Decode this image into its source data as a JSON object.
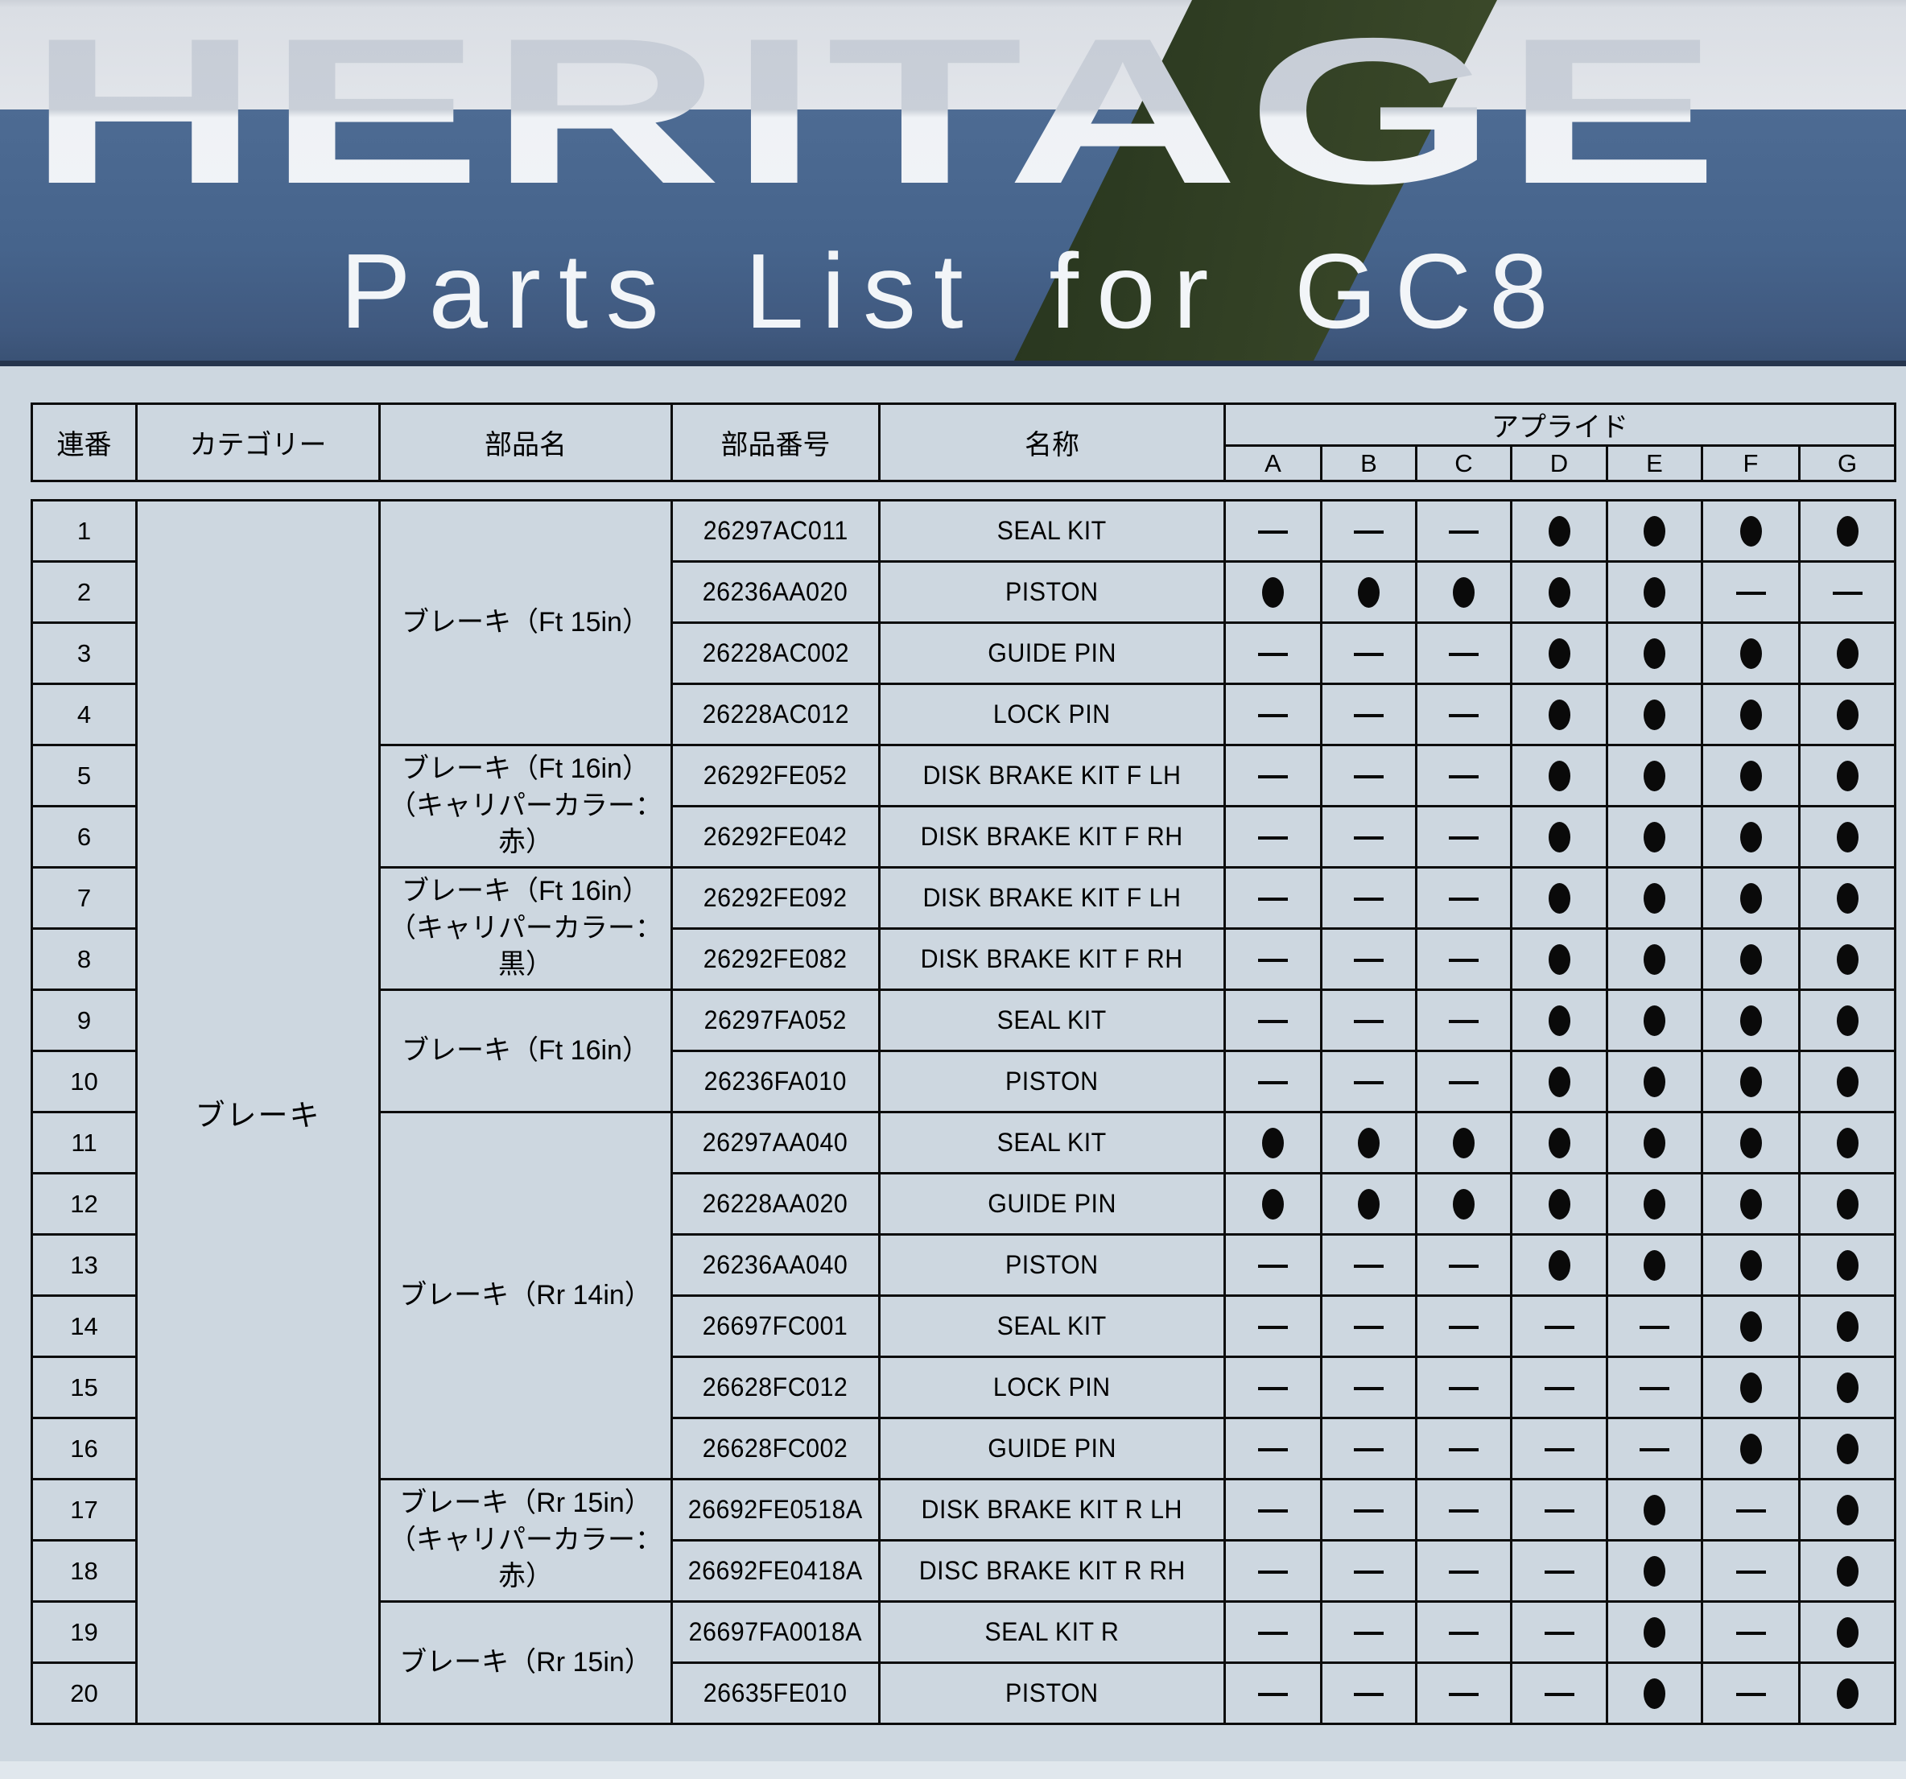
{
  "banner": {
    "brand": "HERITAGE",
    "title": "Parts List for GC8"
  },
  "colors": {
    "banner_blue": "#46648c",
    "banner_light_band": "#dadee4",
    "banner_bottom_line": "#26354d",
    "page_background": "#cdd7e0",
    "table_border": "#0c0c0c",
    "text": "#000000"
  },
  "table": {
    "headers": {
      "seq": "連番",
      "category": "カテゴリー",
      "part_name": "部品名",
      "part_number": "部品番号",
      "name": "名称",
      "applied": "アプライド",
      "applied_cols": [
        "A",
        "B",
        "C",
        "D",
        "E",
        "F",
        "G"
      ]
    },
    "category": "ブレーキ",
    "symbols": {
      "applicable": "●",
      "not_applicable": "—"
    },
    "groups": [
      {
        "part_name_lines": [
          "ブレーキ（Ft 15in）"
        ],
        "rows": [
          {
            "seq": "1",
            "part_number": "26297AC011",
            "name": "SEAL KIT",
            "applied": [
              "—",
              "—",
              "—",
              "●",
              "●",
              "●",
              "●"
            ]
          },
          {
            "seq": "2",
            "part_number": "26236AA020",
            "name": "PISTON",
            "applied": [
              "●",
              "●",
              "●",
              "●",
              "●",
              "—",
              "—"
            ]
          },
          {
            "seq": "3",
            "part_number": "26228AC002",
            "name": "GUIDE PIN",
            "applied": [
              "—",
              "—",
              "—",
              "●",
              "●",
              "●",
              "●"
            ]
          },
          {
            "seq": "4",
            "part_number": "26228AC012",
            "name": "LOCK PIN",
            "applied": [
              "—",
              "—",
              "—",
              "●",
              "●",
              "●",
              "●"
            ]
          }
        ]
      },
      {
        "part_name_lines": [
          "ブレーキ（Ft 16in）",
          "（キャリパーカラー：赤）"
        ],
        "rows": [
          {
            "seq": "5",
            "part_number": "26292FE052",
            "name": "DISK BRAKE KIT F LH",
            "applied": [
              "—",
              "—",
              "—",
              "●",
              "●",
              "●",
              "●"
            ]
          },
          {
            "seq": "6",
            "part_number": "26292FE042",
            "name": "DISK BRAKE KIT F RH",
            "applied": [
              "—",
              "—",
              "—",
              "●",
              "●",
              "●",
              "●"
            ]
          }
        ]
      },
      {
        "part_name_lines": [
          "ブレーキ（Ft 16in）",
          "（キャリパーカラー：黒）"
        ],
        "rows": [
          {
            "seq": "7",
            "part_number": "26292FE092",
            "name": "DISK BRAKE KIT F LH",
            "applied": [
              "—",
              "—",
              "—",
              "●",
              "●",
              "●",
              "●"
            ]
          },
          {
            "seq": "8",
            "part_number": "26292FE082",
            "name": "DISK BRAKE KIT F RH",
            "applied": [
              "—",
              "—",
              "—",
              "●",
              "●",
              "●",
              "●"
            ]
          }
        ]
      },
      {
        "part_name_lines": [
          "ブレーキ（Ft 16in）"
        ],
        "rows": [
          {
            "seq": "9",
            "part_number": "26297FA052",
            "name": "SEAL KIT",
            "applied": [
              "—",
              "—",
              "—",
              "●",
              "●",
              "●",
              "●"
            ]
          },
          {
            "seq": "10",
            "part_number": "26236FA010",
            "name": "PISTON",
            "applied": [
              "—",
              "—",
              "—",
              "●",
              "●",
              "●",
              "●"
            ]
          }
        ]
      },
      {
        "part_name_lines": [
          "ブレーキ（Rr 14in）"
        ],
        "rows": [
          {
            "seq": "11",
            "part_number": "26297AA040",
            "name": "SEAL KIT",
            "applied": [
              "●",
              "●",
              "●",
              "●",
              "●",
              "●",
              "●"
            ]
          },
          {
            "seq": "12",
            "part_number": "26228AA020",
            "name": "GUIDE PIN",
            "applied": [
              "●",
              "●",
              "●",
              "●",
              "●",
              "●",
              "●"
            ]
          },
          {
            "seq": "13",
            "part_number": "26236AA040",
            "name": "PISTON",
            "applied": [
              "—",
              "—",
              "—",
              "●",
              "●",
              "●",
              "●"
            ]
          },
          {
            "seq": "14",
            "part_number": "26697FC001",
            "name": "SEAL KIT",
            "applied": [
              "—",
              "—",
              "—",
              "—",
              "—",
              "●",
              "●"
            ]
          },
          {
            "seq": "15",
            "part_number": "26628FC012",
            "name": "LOCK PIN",
            "applied": [
              "—",
              "—",
              "—",
              "—",
              "—",
              "●",
              "●"
            ]
          },
          {
            "seq": "16",
            "part_number": "26628FC002",
            "name": "GUIDE PIN",
            "applied": [
              "—",
              "—",
              "—",
              "—",
              "—",
              "●",
              "●"
            ]
          }
        ]
      },
      {
        "part_name_lines": [
          "ブレーキ（Rr 15in）",
          "（キャリパーカラー：赤）"
        ],
        "rows": [
          {
            "seq": "17",
            "part_number": "26692FE0518A",
            "name": "DISK BRAKE KIT R LH",
            "applied": [
              "—",
              "—",
              "—",
              "—",
              "●",
              "—",
              "●"
            ]
          },
          {
            "seq": "18",
            "part_number": "26692FE0418A",
            "name": "DISC BRAKE KIT R RH",
            "applied": [
              "—",
              "—",
              "—",
              "—",
              "●",
              "—",
              "●"
            ]
          }
        ]
      },
      {
        "part_name_lines": [
          "ブレーキ（Rr 15in）"
        ],
        "rows": [
          {
            "seq": "19",
            "part_number": "26697FA0018A",
            "name": "SEAL KIT R",
            "applied": [
              "—",
              "—",
              "—",
              "—",
              "●",
              "—",
              "●"
            ]
          },
          {
            "seq": "20",
            "part_number": "26635FE010",
            "name": "PISTON",
            "applied": [
              "—",
              "—",
              "—",
              "—",
              "●",
              "—",
              "●"
            ]
          }
        ]
      }
    ]
  }
}
